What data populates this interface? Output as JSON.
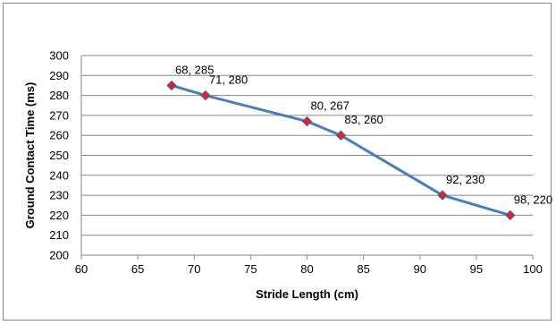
{
  "chart_data": {
    "type": "line",
    "title": "",
    "xlabel": "Stride Length (cm)",
    "ylabel": "Ground Contact Time (ms)",
    "xlim": [
      60,
      100
    ],
    "ylim": [
      200,
      300
    ],
    "x_ticks": [
      60,
      65,
      70,
      75,
      80,
      85,
      90,
      95,
      100
    ],
    "y_ticks": [
      200,
      210,
      220,
      230,
      240,
      250,
      260,
      270,
      280,
      290,
      300
    ],
    "grid": "horizontal",
    "legend": "none",
    "series": [
      {
        "x": [
          68,
          71,
          80,
          83,
          92,
          98
        ],
        "y": [
          285,
          280,
          267,
          260,
          230,
          220
        ],
        "labels": [
          "68, 285",
          "71, 280",
          "80, 267",
          "83, 260",
          "92, 230",
          "98, 220"
        ],
        "line_color": "#4a7ebb",
        "marker_color": "#e0261b",
        "marker_edge": "#3a5f9a"
      }
    ]
  }
}
